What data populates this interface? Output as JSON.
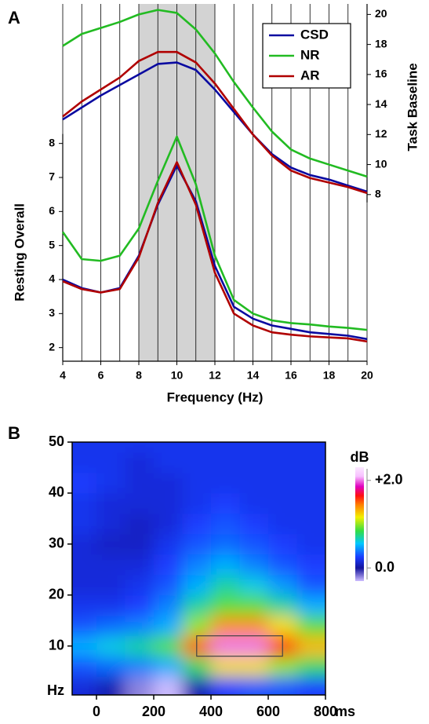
{
  "chart_data": [
    {
      "type": "line",
      "panel": "A",
      "x": [
        4,
        5,
        6,
        7,
        8,
        9,
        10,
        11,
        12,
        13,
        14,
        15,
        16,
        17,
        18,
        19,
        20
      ],
      "xlim": [
        4,
        20
      ],
      "xticks": [
        4,
        6,
        8,
        10,
        12,
        14,
        16,
        18,
        20
      ],
      "xgrid": [
        4,
        5,
        6,
        7,
        8,
        9,
        10,
        11,
        12,
        13,
        14,
        15,
        16,
        17,
        18,
        19,
        20
      ],
      "xlabel": "Frequency (Hz)",
      "ylabel": "Resting Overall",
      "ylim": [
        1.6,
        12.1
      ],
      "yticks": [
        2,
        3,
        4,
        5,
        6,
        7,
        8
      ],
      "y2label": "Task Baseline",
      "y2lim": [
        -3.1,
        20.7
      ],
      "y2ticks": [
        8,
        10,
        12,
        14,
        16,
        18,
        20
      ],
      "highlight": [
        8,
        12
      ],
      "legend": "upper right",
      "series": [
        {
          "name": "CSD",
          "color": "#0a0aa0",
          "values": [
            4.0,
            3.75,
            3.62,
            3.75,
            4.7,
            6.2,
            7.35,
            6.3,
            4.4,
            3.2,
            2.85,
            2.65,
            2.55,
            2.45,
            2.4,
            2.35,
            2.25
          ]
        },
        {
          "name": "NR",
          "color": "#22bb22",
          "values": [
            5.4,
            4.6,
            4.55,
            4.7,
            5.5,
            6.9,
            8.2,
            6.8,
            4.7,
            3.4,
            3.0,
            2.8,
            2.72,
            2.68,
            2.62,
            2.58,
            2.52
          ]
        },
        {
          "name": "AR",
          "color": "#b00000",
          "values": [
            3.95,
            3.72,
            3.62,
            3.72,
            4.65,
            6.25,
            7.45,
            6.2,
            4.2,
            3.0,
            2.65,
            2.45,
            2.38,
            2.33,
            2.3,
            2.27,
            2.18
          ]
        },
        {
          "name": "CSD",
          "color": "#0a0aa0",
          "axis": "y2",
          "values": [
            13.0,
            13.8,
            14.6,
            15.3,
            16.0,
            16.7,
            16.8,
            16.3,
            15.0,
            13.5,
            12.0,
            10.7,
            9.8,
            9.3,
            9.0,
            8.6,
            8.2
          ]
        },
        {
          "name": "NR",
          "color": "#22bb22",
          "axis": "y2",
          "values": [
            17.9,
            18.7,
            19.1,
            19.5,
            20.0,
            20.3,
            20.1,
            19.0,
            17.4,
            15.5,
            13.8,
            12.2,
            11.0,
            10.4,
            10.0,
            9.6,
            9.2
          ]
        },
        {
          "name": "AR",
          "color": "#b00000",
          "axis": "y2",
          "values": [
            13.2,
            14.2,
            15.0,
            15.8,
            16.9,
            17.5,
            17.5,
            16.8,
            15.4,
            13.7,
            12.0,
            10.6,
            9.6,
            9.1,
            8.8,
            8.5,
            8.1
          ]
        }
      ]
    },
    {
      "type": "heatmap",
      "panel": "B",
      "x": [
        -50,
        50,
        150,
        250,
        350,
        450,
        550,
        650,
        750
      ],
      "y": [
        2,
        6,
        10,
        14,
        18,
        22,
        26,
        30,
        34,
        38,
        42,
        46,
        50
      ],
      "z": [
        [
          0.15,
          0.05,
          -0.2,
          -0.3,
          0.05,
          0.25,
          0.3,
          0.3,
          0.25
        ],
        [
          0.3,
          0.35,
          0.4,
          0.5,
          0.8,
          1.2,
          1.2,
          1.0,
          0.8
        ],
        [
          0.5,
          0.6,
          0.7,
          0.9,
          1.5,
          2.0,
          2.0,
          1.6,
          1.3
        ],
        [
          0.3,
          0.35,
          0.4,
          0.5,
          1.0,
          1.4,
          1.4,
          1.2,
          0.9
        ],
        [
          0.2,
          0.2,
          0.25,
          0.4,
          0.7,
          0.9,
          0.9,
          0.7,
          0.5
        ],
        [
          0.15,
          0.15,
          0.2,
          0.3,
          0.5,
          0.7,
          0.6,
          0.45,
          0.3
        ],
        [
          0.15,
          0.15,
          0.15,
          0.25,
          0.4,
          0.5,
          0.4,
          0.3,
          0.25
        ],
        [
          0.15,
          0.1,
          0.1,
          0.2,
          0.3,
          0.35,
          0.3,
          0.25,
          0.2
        ],
        [
          0.2,
          0.15,
          0.1,
          0.15,
          0.25,
          0.3,
          0.25,
          0.2,
          0.2
        ],
        [
          0.2,
          0.15,
          0.15,
          0.15,
          0.2,
          0.25,
          0.2,
          0.2,
          0.2
        ],
        [
          0.25,
          0.2,
          0.15,
          0.15,
          0.2,
          0.2,
          0.2,
          0.2,
          0.2
        ],
        [
          0.2,
          0.2,
          0.15,
          0.2,
          0.2,
          0.2,
          0.2,
          0.2,
          0.2
        ],
        [
          0.2,
          0.2,
          0.2,
          0.2,
          0.2,
          0.2,
          0.2,
          0.2,
          0.2
        ]
      ],
      "xlim": [
        -85,
        800
      ],
      "xticks": [
        0,
        200,
        400,
        600,
        800
      ],
      "xlabel": "ms",
      "ylim": [
        0.4,
        50
      ],
      "yticks": [
        10,
        20,
        30,
        40,
        50
      ],
      "ylabel": "Hz",
      "box": {
        "x": [
          350,
          650
        ],
        "y": [
          8,
          12
        ]
      },
      "colorbar": {
        "label": "dB",
        "clim": [
          -0.3,
          2.3
        ],
        "ticks": [
          {
            "value": 0,
            "label": "0.0"
          },
          {
            "value": 2,
            "label": "+2.0"
          }
        ]
      }
    }
  ]
}
